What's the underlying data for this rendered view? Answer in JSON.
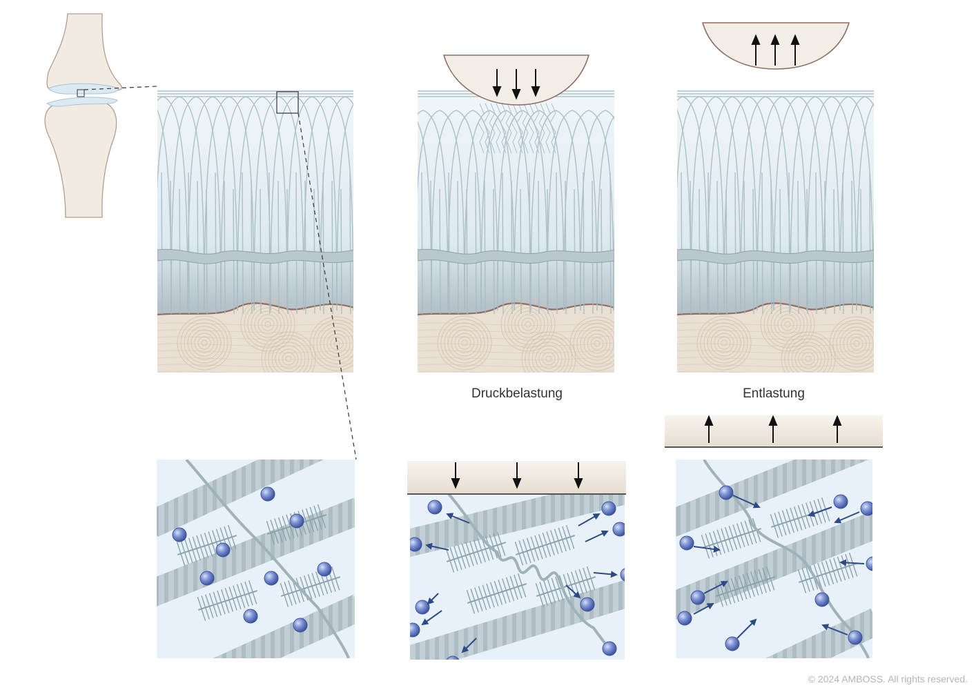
{
  "labels": {
    "compression": "Druckbelastung",
    "unloading": "Entlastung"
  },
  "copyright": "© 2024 AMBOSS. All rights reserved.",
  "colors": {
    "background": "#ffffff",
    "cartilage_light": "#eef4f9",
    "cartilage_dark": "#9fabb5",
    "fiber": "#a7bcc2",
    "tidemark": "#b8c8cc",
    "bone": "#e9e0d3",
    "bone_line": "#d4c4b0",
    "bone_border": "#8d6e61",
    "bone_sketch": "#f2ebe2",
    "joint_outline": "#b49b8e",
    "pressure_plate": "#f2ede6",
    "proteoglycan": "#8e9ac4",
    "water": "#6b80c8",
    "arrow_blue": "#2b4a86",
    "arrow": "#111111"
  }
}
